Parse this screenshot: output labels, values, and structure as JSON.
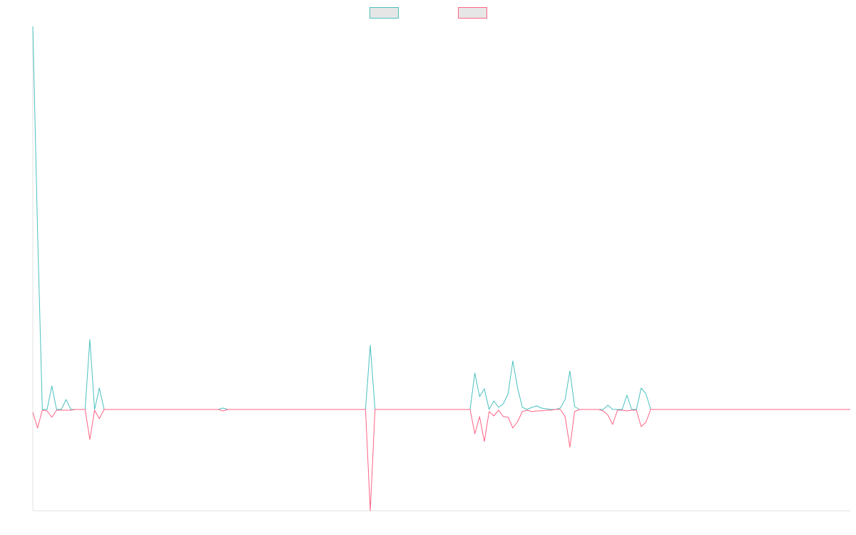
{
  "chart_data": {
    "type": "line",
    "legend": "top",
    "categories": [
      null,
      null,
      null,
      null,
      null,
      null,
      null,
      null,
      null,
      null,
      null,
      null,
      null,
      null,
      null,
      null,
      null,
      null,
      null,
      null,
      null,
      null,
      null,
      null,
      null,
      null,
      null,
      null,
      null,
      null,
      null,
      null,
      null,
      null,
      null,
      null,
      null,
      null,
      null,
      null,
      null,
      null,
      null,
      null,
      null,
      null,
      null,
      null,
      null,
      null,
      null,
      null,
      null,
      null,
      null,
      null,
      null,
      null,
      null,
      null,
      null,
      null,
      null,
      null,
      null,
      null,
      null,
      null,
      null,
      null,
      null,
      null,
      null,
      null,
      null,
      null,
      null,
      null,
      null,
      null,
      null,
      null,
      null,
      null,
      null,
      null,
      null,
      null,
      null,
      null,
      null,
      null,
      null,
      null,
      null,
      null,
      null,
      null,
      null,
      null,
      null,
      null,
      null,
      null,
      null,
      null,
      null,
      null,
      null,
      null,
      null,
      null,
      null,
      null,
      null,
      null,
      null,
      null,
      null,
      null,
      null,
      null,
      null,
      null,
      null,
      null,
      null,
      null,
      null,
      null,
      null,
      null,
      null,
      null,
      null,
      null,
      null,
      null,
      null,
      null,
      null,
      null,
      null,
      null,
      null,
      null,
      null,
      null,
      null,
      null,
      null,
      null,
      null,
      null,
      null,
      null,
      null,
      null,
      null,
      null,
      null,
      null,
      null,
      null,
      null,
      null,
      null,
      null,
      null,
      null,
      null,
      null,
      null
    ],
    "ylim": [
      -142,
      537
    ],
    "series": [
      {
        "color": "#4bc0c0",
        "values": [
          537,
          250,
          0,
          0,
          33,
          0,
          0,
          14,
          0,
          0,
          0,
          0,
          98,
          0,
          30,
          0,
          0,
          0,
          0,
          0,
          0,
          0,
          0,
          0,
          0,
          0,
          0,
          0,
          0,
          0,
          0,
          0,
          0,
          0,
          0,
          0,
          0,
          0,
          0,
          0,
          2,
          0,
          0,
          0,
          0,
          0,
          0,
          0,
          0,
          0,
          0,
          0,
          0,
          0,
          0,
          0,
          0,
          0,
          0,
          0,
          0,
          0,
          0,
          0,
          0,
          0,
          0,
          0,
          0,
          0,
          0,
          90,
          0,
          0,
          0,
          0,
          0,
          0,
          0,
          0,
          0,
          0,
          0,
          0,
          0,
          0,
          0,
          0,
          0,
          0,
          0,
          0,
          0,
          51,
          18,
          29,
          0,
          12,
          3,
          8,
          22,
          68,
          30,
          3,
          0,
          3,
          5,
          2,
          1,
          0,
          0,
          2,
          14,
          54,
          4,
          0,
          0,
          0,
          0,
          0,
          0,
          6,
          0,
          0,
          0,
          20,
          0,
          0,
          30,
          22,
          0,
          0,
          0,
          0,
          0,
          0,
          0,
          0,
          0,
          0,
          0,
          0,
          0,
          0,
          0,
          0,
          0,
          0,
          0,
          0,
          0,
          0,
          0,
          0,
          0,
          0,
          0,
          0,
          0,
          0,
          0,
          0,
          0,
          0,
          0,
          0,
          0,
          0,
          0,
          0,
          0,
          0,
          0
        ]
      },
      {
        "color": "#ff6384",
        "values": [
          -4,
          -26,
          -1,
          -2,
          -11,
          -1,
          -1,
          -1,
          -1,
          0,
          0,
          0,
          -42,
          -1,
          -13,
          0,
          0,
          0,
          0,
          0,
          0,
          0,
          0,
          0,
          0,
          0,
          0,
          0,
          0,
          0,
          0,
          0,
          0,
          0,
          0,
          0,
          0,
          0,
          0,
          0,
          -2,
          0,
          0,
          0,
          0,
          0,
          0,
          0,
          0,
          0,
          0,
          0,
          0,
          0,
          0,
          0,
          0,
          0,
          0,
          0,
          0,
          0,
          0,
          0,
          0,
          0,
          0,
          0,
          0,
          0,
          0,
          -142,
          0,
          0,
          0,
          0,
          0,
          0,
          0,
          0,
          0,
          0,
          0,
          0,
          0,
          0,
          0,
          0,
          0,
          0,
          0,
          0,
          0,
          -34,
          -10,
          -45,
          -3,
          -9,
          -1,
          -10,
          -11,
          -26,
          -17,
          -3,
          -1,
          -3,
          -2,
          -2,
          -1,
          -1,
          0,
          0,
          -10,
          -53,
          -3,
          0,
          0,
          0,
          0,
          0,
          -2,
          -8,
          -21,
          -1,
          -1,
          -2,
          -1,
          -1,
          -24,
          -18,
          0,
          0,
          0,
          0,
          0,
          0,
          0,
          0,
          0,
          0,
          0,
          0,
          0,
          0,
          0,
          0,
          0,
          0,
          0,
          0,
          0,
          0,
          0,
          0,
          0,
          0,
          0,
          0,
          0,
          0,
          0,
          0,
          0,
          0,
          0,
          0,
          0,
          0,
          0,
          0,
          0,
          0,
          0
        ]
      }
    ]
  }
}
